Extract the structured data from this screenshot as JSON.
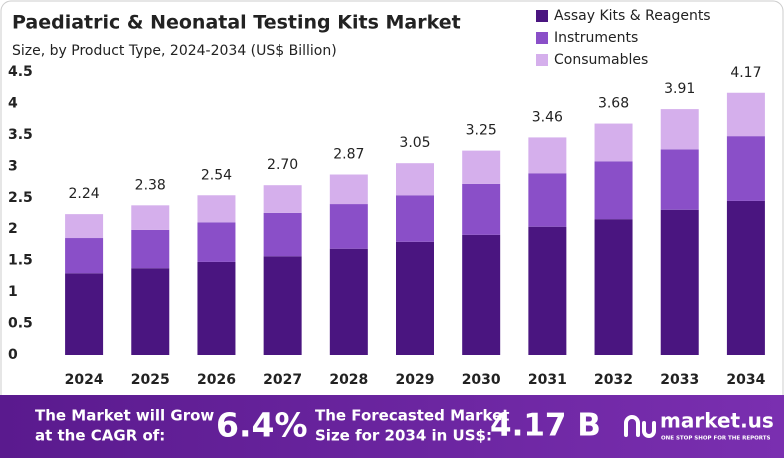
{
  "chart_data": {
    "type": "stacked-bar",
    "title": "Paediatric & Neonatal Testing Kits Market",
    "subtitle": "Size, by Product Type, 2024-2034 (US$ Billion)",
    "categories": [
      "2024",
      "2025",
      "2026",
      "2027",
      "2028",
      "2029",
      "2030",
      "2031",
      "2032",
      "2033",
      "2034"
    ],
    "series": [
      {
        "name": "Assay Kits & Reagents",
        "color": "#4a1580",
        "values": [
          1.3,
          1.38,
          1.48,
          1.57,
          1.69,
          1.8,
          1.91,
          2.04,
          2.16,
          2.31,
          2.45
        ]
      },
      {
        "name": "Instruments",
        "color": "#8a4fc8",
        "values": [
          0.56,
          0.61,
          0.63,
          0.69,
          0.71,
          0.74,
          0.81,
          0.85,
          0.92,
          0.96,
          1.03
        ]
      },
      {
        "name": "Consumables",
        "color": "#d5afec",
        "values": [
          0.38,
          0.39,
          0.43,
          0.44,
          0.47,
          0.51,
          0.53,
          0.57,
          0.6,
          0.64,
          0.69
        ]
      }
    ],
    "totals": [
      2.24,
      2.38,
      2.54,
      2.7,
      2.87,
      3.05,
      3.25,
      3.46,
      3.68,
      3.91,
      4.17
    ],
    "value_labels": [
      "2.24",
      "2.38",
      "2.54",
      "2.70",
      "2.87",
      "3.05",
      "3.25",
      "3.46",
      "3.68",
      "3.91",
      "4.17"
    ],
    "ylim": [
      0,
      4.5
    ],
    "yticks": [
      0,
      0.5,
      1,
      1.5,
      2,
      2.5,
      3,
      3.5,
      4,
      4.5
    ],
    "grid": false,
    "legend": "top-right"
  },
  "footer": {
    "cagr_text": [
      "The Market will Grow",
      "at the CAGR of:"
    ],
    "cagr_value": "6.4%",
    "forecast_text": [
      "The Forecasted Market",
      "Size for 2034 in US$:"
    ],
    "forecast_value": "4.17 B",
    "brand": "market.us",
    "tagline": "ONE STOP SHOP FOR THE REPORTS"
  }
}
